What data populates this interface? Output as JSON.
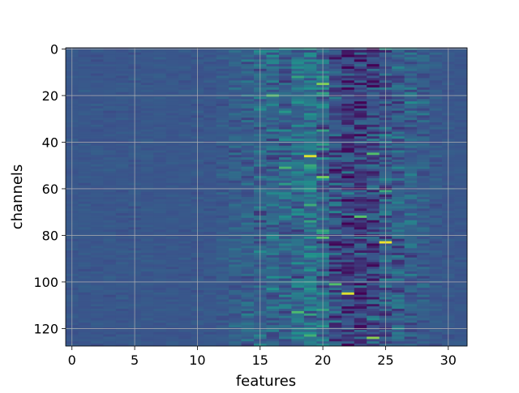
{
  "chart_data": {
    "type": "heatmap",
    "title": "",
    "xlabel": "features",
    "ylabel": "channels",
    "n_cols": 32,
    "n_rows": 128,
    "x_ticks": [
      0,
      5,
      10,
      15,
      20,
      25,
      30
    ],
    "x_tick_labels": [
      "0",
      "5",
      "10",
      "15",
      "20",
      "25",
      "30"
    ],
    "y_ticks": [
      0,
      20,
      40,
      60,
      80,
      100,
      120
    ],
    "y_tick_labels": [
      "0",
      "20",
      "40",
      "60",
      "80",
      "100",
      "120"
    ],
    "xlim": [
      -0.5,
      31.5
    ],
    "ylim": [
      127.5,
      -0.5
    ],
    "grid": true,
    "colormap": "viridis",
    "colormap_stops": [
      "#440154",
      "#3b528b",
      "#21918c",
      "#5ec962",
      "#fde725"
    ],
    "base_level": 0.27,
    "column_profile": {
      "features": [
        0,
        4,
        8,
        11,
        12,
        13,
        14,
        15,
        16,
        17,
        18,
        19,
        20,
        21,
        22,
        23,
        24,
        25,
        26,
        27,
        28,
        29,
        30,
        31
      ],
      "mean_level": [
        0.27,
        0.27,
        0.27,
        0.27,
        0.28,
        0.3,
        0.31,
        0.32,
        0.33,
        0.34,
        0.36,
        0.38,
        0.34,
        0.24,
        0.2,
        0.18,
        0.22,
        0.28,
        0.31,
        0.31,
        0.29,
        0.28,
        0.27,
        0.27
      ],
      "variation": [
        0.04,
        0.05,
        0.04,
        0.05,
        0.08,
        0.12,
        0.16,
        0.2,
        0.22,
        0.24,
        0.26,
        0.3,
        0.3,
        0.28,
        0.3,
        0.3,
        0.3,
        0.3,
        0.26,
        0.2,
        0.14,
        0.08,
        0.05,
        0.04
      ]
    },
    "highlights": [
      {
        "feature": 19,
        "channel": 46,
        "level": 0.95
      },
      {
        "feature": 20,
        "channel": 15,
        "level": 0.8
      },
      {
        "feature": 20,
        "channel": 55,
        "level": 0.78
      },
      {
        "feature": 25,
        "channel": 83,
        "level": 0.98
      },
      {
        "feature": 22,
        "channel": 105,
        "level": 0.95
      },
      {
        "feature": 24,
        "channel": 124,
        "level": 0.82
      },
      {
        "feature": 16,
        "channel": 20,
        "level": 0.7
      },
      {
        "feature": 20,
        "channel": 81,
        "level": 0.72
      },
      {
        "feature": 24,
        "channel": 45,
        "level": 0.7
      },
      {
        "feature": 23,
        "channel": 72,
        "level": 0.72
      },
      {
        "feature": 18,
        "channel": 113,
        "level": 0.68
      },
      {
        "feature": 21,
        "channel": 101,
        "level": 0.7
      },
      {
        "feature": 17,
        "channel": 51,
        "level": 0.66
      },
      {
        "feature": 25,
        "channel": 61,
        "level": 0.6
      }
    ],
    "lowlights": [
      {
        "feature": 21,
        "channel": 52,
        "level": 0.02
      },
      {
        "feature": 22,
        "channel": 84,
        "level": 0.02
      },
      {
        "feature": 21,
        "channel": 4,
        "level": 0.05
      },
      {
        "feature": 23,
        "channel": 34,
        "level": 0.05
      },
      {
        "feature": 22,
        "channel": 96,
        "level": 0.05
      },
      {
        "feature": 24,
        "channel": 110,
        "level": 0.06
      }
    ]
  }
}
